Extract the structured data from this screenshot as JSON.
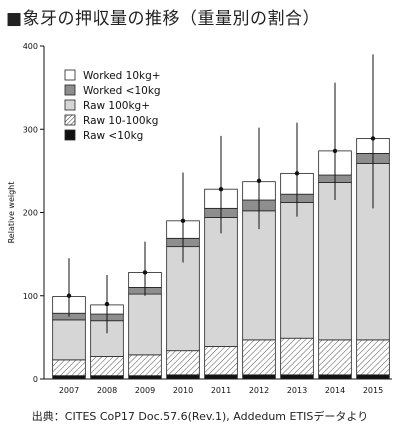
{
  "title": "■象牙の押収量の推移（重量別の割合）",
  "source": "出典：CITES CoP17 Doc.57.6(Rev.1), Addedum ETISデータより",
  "chart_data": {
    "type": "bar",
    "stacked": true,
    "categories": [
      "2007",
      "2008",
      "2009",
      "2010",
      "2011",
      "2012",
      "2013",
      "2014",
      "2015"
    ],
    "ylabel": "Relative weight",
    "xlabel": "",
    "ylim": [
      0,
      400
    ],
    "yticks": [
      0,
      100,
      200,
      300,
      400
    ],
    "series": [
      {
        "name": "Raw <10kg",
        "values": [
          4,
          4,
          4,
          5,
          5,
          5,
          5,
          5,
          5
        ]
      },
      {
        "name": "Raw 10-100kg",
        "values": [
          19,
          23,
          25,
          29,
          34,
          42,
          44,
          42,
          42
        ]
      },
      {
        "name": "Raw 100kg+",
        "values": [
          48,
          43,
          73,
          125,
          155,
          155,
          163,
          189,
          212
        ]
      },
      {
        "name": "Worked <10kg",
        "values": [
          8,
          8,
          8,
          10,
          11,
          13,
          10,
          9,
          12
        ]
      },
      {
        "name": "Worked 10kg+",
        "values": [
          20,
          11,
          18,
          21,
          23,
          22,
          25,
          29,
          18
        ]
      }
    ],
    "totals": [
      100,
      90,
      128,
      190,
      228,
      238,
      247,
      274,
      289
    ],
    "error_bars": [
      {
        "low": 75,
        "high": 145
      },
      {
        "low": 55,
        "high": 125
      },
      {
        "low": 100,
        "high": 165
      },
      {
        "low": 140,
        "high": 248
      },
      {
        "low": 175,
        "high": 292
      },
      {
        "low": 180,
        "high": 302
      },
      {
        "low": 195,
        "high": 308
      },
      {
        "low": 215,
        "high": 356
      },
      {
        "low": 205,
        "high": 390
      }
    ],
    "legend_position": "top-left",
    "grid": false
  }
}
